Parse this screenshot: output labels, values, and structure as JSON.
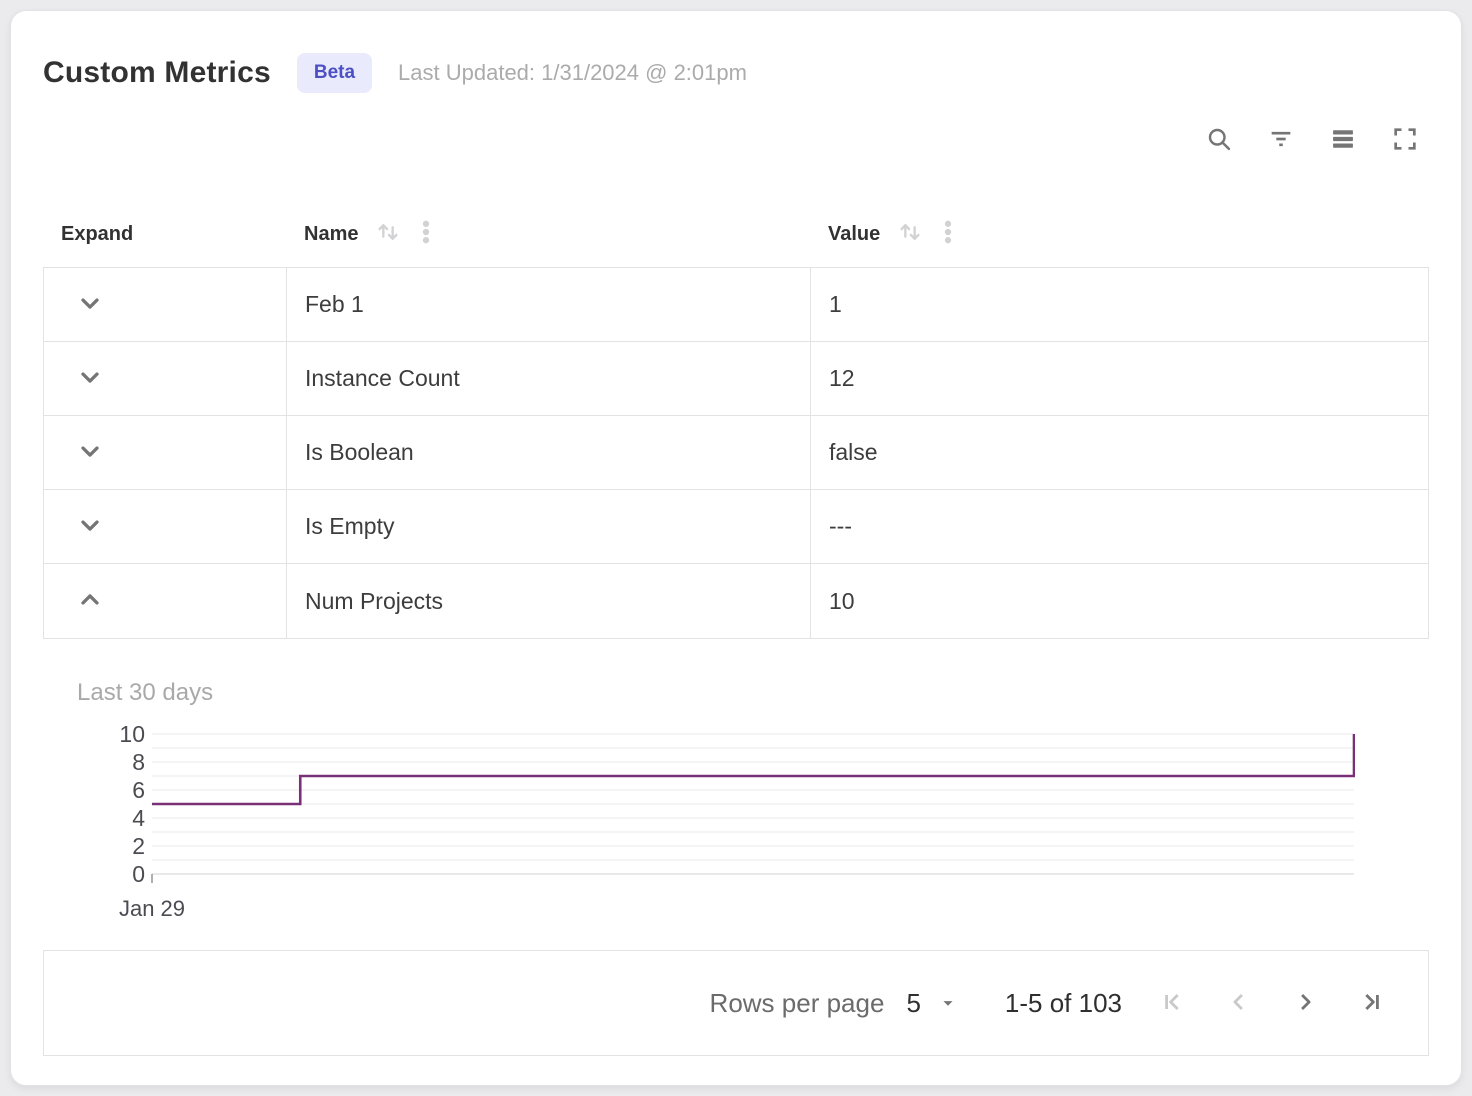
{
  "header": {
    "title": "Custom Metrics",
    "badge": "Beta",
    "last_updated": "Last Updated: 1/31/2024 @ 2:01pm"
  },
  "toolbar": {
    "icons": [
      "search",
      "filter",
      "density",
      "fullscreen"
    ]
  },
  "table": {
    "columns": {
      "expand": "Expand",
      "name": "Name",
      "value": "Value"
    },
    "rows": [
      {
        "name": "Feb 1",
        "value": "1",
        "expanded": false
      },
      {
        "name": "Instance Count",
        "value": "12",
        "expanded": false
      },
      {
        "name": "Is Boolean",
        "value": "false",
        "expanded": false
      },
      {
        "name": "Is Empty",
        "value": "---",
        "expanded": false
      },
      {
        "name": "Num Projects",
        "value": "10",
        "expanded": true
      }
    ]
  },
  "chart_data": {
    "type": "line",
    "title": "Last 30 days",
    "step": true,
    "x_range_days": 30,
    "x_tick_labels": [
      "Jan 29"
    ],
    "ylim": [
      0,
      10
    ],
    "y_ticks": [
      0,
      2,
      4,
      6,
      8,
      10
    ],
    "line_color": "#7a3077",
    "grid": true,
    "points": [
      {
        "x": 0,
        "y": 5
      },
      {
        "x": 3.7,
        "y": 5
      },
      {
        "x": 3.7,
        "y": 7
      },
      {
        "x": 30,
        "y": 7
      },
      {
        "x": 30,
        "y": 10
      }
    ]
  },
  "pagination": {
    "rows_per_page_label": "Rows per page",
    "rows_per_page_value": "5",
    "range_label": "1-5 of 103"
  },
  "colors": {
    "badge_bg": "#e9eafc",
    "badge_text": "#4c50c4",
    "chart_line": "#7a3077"
  }
}
